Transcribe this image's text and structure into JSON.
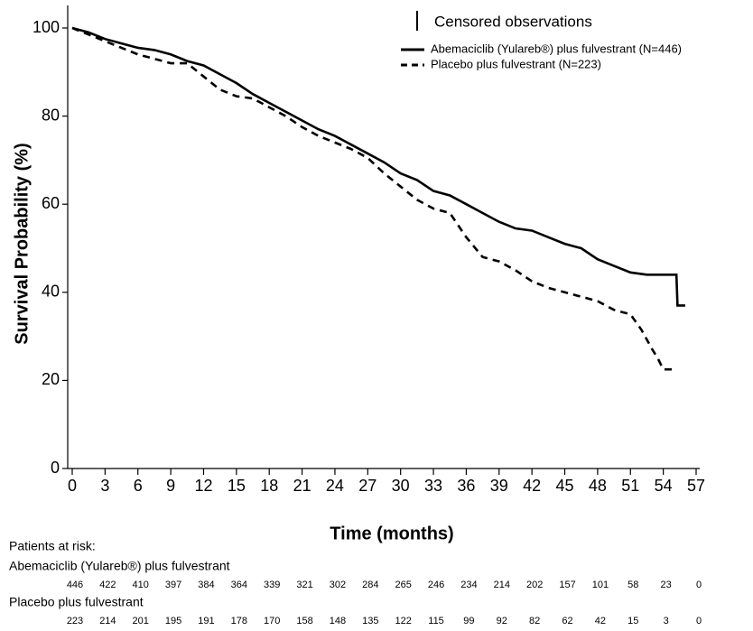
{
  "chart_data": {
    "type": "line",
    "x_label": "Time (months)",
    "y_label": "Survival Probability (%)",
    "censor_label": "Censored observations",
    "xlim": [
      0,
      57
    ],
    "ylim": [
      0,
      105
    ],
    "xticks": [
      0,
      3,
      6,
      9,
      12,
      15,
      18,
      21,
      24,
      27,
      30,
      33,
      36,
      39,
      42,
      45,
      48,
      51,
      54,
      57
    ],
    "yticks": [
      0,
      20,
      40,
      60,
      80,
      100
    ],
    "legend": "top-right",
    "series": [
      {
        "name": "Abemaciclib (Yulareb®)  plus fulvestrant (N=446)",
        "color": "#000000",
        "dash": "solid",
        "x": [
          0,
          1.5,
          3,
          4.5,
          6,
          7.5,
          9,
          10.5,
          12,
          13.5,
          15,
          16.5,
          18,
          19.5,
          21,
          22.5,
          24,
          25.5,
          27,
          28.5,
          30,
          31.5,
          33,
          34.5,
          36,
          37.5,
          39,
          40.5,
          42,
          43.5,
          45,
          46.5,
          48,
          49.5,
          51,
          52.5,
          54,
          55.2,
          55.3,
          56
        ],
        "values": [
          100,
          99,
          97.5,
          96.5,
          95.5,
          95,
          94,
          92.5,
          91.5,
          89.5,
          87.5,
          85,
          83,
          81,
          79,
          77,
          75.5,
          73.5,
          71.5,
          69.5,
          67,
          65.5,
          63,
          62,
          60,
          58,
          56,
          54.5,
          54,
          52.5,
          51,
          50,
          47.5,
          46,
          44.5,
          44,
          44,
          44,
          37,
          37
        ]
      },
      {
        "name": "Placebo plus fulvestrant (N=223)",
        "color": "#000000",
        "dash": "dashed",
        "x": [
          0,
          1.5,
          3,
          4.5,
          6,
          7.5,
          9,
          10.5,
          12,
          13.5,
          15,
          16.5,
          18,
          19.5,
          21,
          22.5,
          24,
          25.5,
          27,
          28.5,
          30,
          31.5,
          33,
          34.5,
          36,
          37.5,
          39,
          40.5,
          42,
          43.5,
          45,
          46.5,
          48,
          49.5,
          51,
          52,
          53,
          53.5,
          54,
          55
        ],
        "values": [
          100,
          98.5,
          97,
          95.5,
          94,
          93,
          92,
          92,
          89,
          86,
          84.5,
          84,
          82,
          80,
          77.5,
          75.5,
          74,
          72.5,
          70.5,
          67,
          64,
          61,
          59,
          58,
          52.5,
          48,
          47,
          45,
          42.5,
          41,
          40,
          39,
          38,
          36,
          35,
          31.5,
          27,
          25,
          22.5,
          22.5
        ]
      }
    ],
    "risk_table": {
      "title": "Patients at risk:",
      "rows": [
        {
          "name": "Abemaciclib (Yulareb®)  plus fulvestrant",
          "values": [
            446,
            422,
            410,
            397,
            384,
            364,
            339,
            321,
            302,
            284,
            265,
            246,
            234,
            214,
            202,
            157,
            101,
            58,
            23,
            0
          ]
        },
        {
          "name": "Placebo plus fulvestrant",
          "values": [
            223,
            214,
            201,
            195,
            191,
            178,
            170,
            158,
            148,
            135,
            122,
            115,
            99,
            92,
            82,
            62,
            42,
            15,
            3,
            0
          ]
        }
      ]
    }
  }
}
